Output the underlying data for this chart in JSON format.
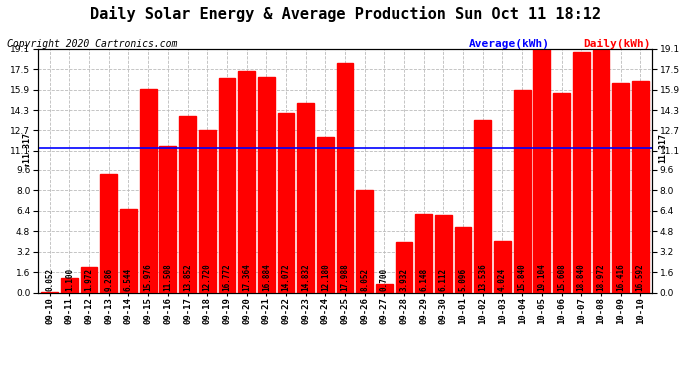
{
  "title": "Daily Solar Energy & Average Production Sun Oct 11 18:12",
  "copyright": "Copyright 2020 Cartronics.com",
  "legend_average": "Average(kWh)",
  "legend_daily": "Daily(kWh)",
  "average_value": 11.317,
  "bar_color": "#FF0000",
  "average_line_color": "#0000FF",
  "background_color": "#FFFFFF",
  "grid_color": "#BBBBBB",
  "categories": [
    "09-10",
    "09-11",
    "09-12",
    "09-13",
    "09-14",
    "09-15",
    "09-16",
    "09-17",
    "09-18",
    "09-19",
    "09-20",
    "09-21",
    "09-22",
    "09-23",
    "09-24",
    "09-25",
    "09-26",
    "09-27",
    "09-28",
    "09-29",
    "09-30",
    "10-01",
    "10-02",
    "10-03",
    "10-04",
    "10-05",
    "10-06",
    "10-07",
    "10-08",
    "10-09",
    "10-10"
  ],
  "values": [
    0.052,
    1.1,
    1.972,
    9.286,
    6.544,
    15.976,
    11.508,
    13.852,
    12.72,
    16.772,
    17.364,
    16.884,
    14.072,
    14.832,
    12.18,
    17.988,
    8.052,
    0.7,
    3.932,
    6.148,
    6.112,
    5.096,
    13.536,
    4.024,
    15.84,
    19.104,
    15.608,
    18.84,
    18.972,
    16.416,
    16.592
  ],
  "ylim": [
    0.0,
    19.1
  ],
  "yticks": [
    0.0,
    1.6,
    3.2,
    4.8,
    6.4,
    8.0,
    9.6,
    11.1,
    12.7,
    14.3,
    15.9,
    17.5,
    19.1
  ],
  "title_fontsize": 11,
  "copyright_fontsize": 7,
  "bar_label_fontsize": 5.5,
  "tick_fontsize": 6.5,
  "legend_fontsize": 8
}
